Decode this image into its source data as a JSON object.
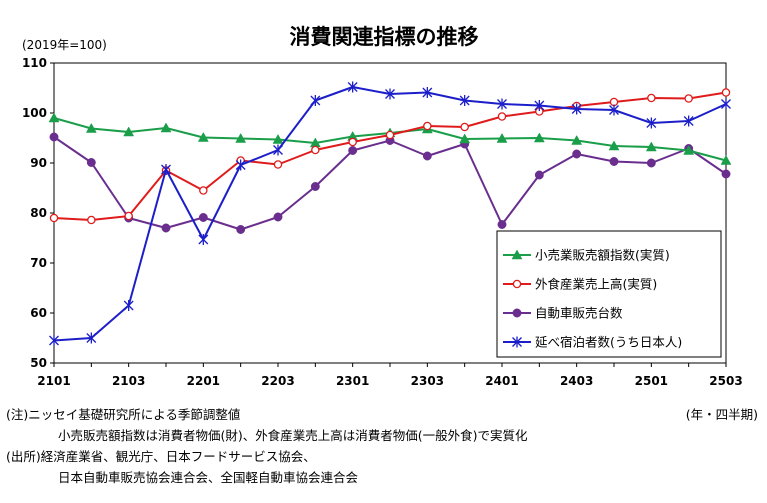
{
  "title": "消費関連指標の推移",
  "unit_label": "(2019年=100)",
  "period_unit": "(年・四半期)",
  "notes": [
    "(注)ニッセイ基礎研究所による季節調整値",
    "小売販売額指数は消費者物価(財)、外食産業売上高は消費者物価(一般外食)で実質化",
    "(出所)経済産業省、観光庁、日本フードサービス協会、",
    "日本自動車販売協会連合会、全国軽自動車協会連合会"
  ],
  "colors": {
    "retail": "#1a9e4a",
    "restaurant": "#e01b1b",
    "auto": "#6a2e8e",
    "lodging": "#1c1fc9"
  },
  "chart_data": {
    "type": "line",
    "x": [
      "2101",
      "2102",
      "2103",
      "2104",
      "2201",
      "2202",
      "2203",
      "2204",
      "2301",
      "2302",
      "2303",
      "2304",
      "2401",
      "2402",
      "2403",
      "2404",
      "2501",
      "2502",
      "2503"
    ],
    "x_tick_labels": [
      "2101",
      "",
      "2103",
      "",
      "2201",
      "",
      "2203",
      "",
      "2301",
      "",
      "2303",
      "",
      "2401",
      "",
      "2403",
      "",
      "2501",
      "",
      "2503"
    ],
    "ylim": [
      50,
      110
    ],
    "yticks": [
      50,
      60,
      70,
      80,
      90,
      100,
      110
    ],
    "grid": false,
    "legend_position": "bottom-right",
    "series": [
      {
        "name": "小売業販売額指数(実質)",
        "key": "retail",
        "marker": "triangle",
        "values": [
          99.0,
          96.9,
          96.2,
          97.0,
          95.1,
          94.9,
          94.7,
          94.0,
          95.3,
          96.0,
          96.8,
          94.8,
          94.9,
          95.0,
          94.5,
          93.4,
          93.2,
          92.5,
          90.5
        ]
      },
      {
        "name": "外食産業売上高(実質)",
        "key": "restaurant",
        "marker": "circle-open",
        "values": [
          79.0,
          78.6,
          79.4,
          88.5,
          84.5,
          90.5,
          89.7,
          92.6,
          94.2,
          95.6,
          97.4,
          97.2,
          99.3,
          100.3,
          101.4,
          102.2,
          103.0,
          102.9,
          104.1
        ]
      },
      {
        "name": "自動車販売台数",
        "key": "auto",
        "marker": "circle-filled",
        "values": [
          95.2,
          90.1,
          79.0,
          77.0,
          79.1,
          76.7,
          79.2,
          85.3,
          92.5,
          94.5,
          91.4,
          93.8,
          77.7,
          87.6,
          91.8,
          90.3,
          90.0,
          92.9,
          87.8
        ]
      },
      {
        "name": "延べ宿泊者数(うち日本人)",
        "key": "lodging",
        "marker": "star",
        "values": [
          54.5,
          55.0,
          61.5,
          88.7,
          74.7,
          89.6,
          92.6,
          102.5,
          105.2,
          103.8,
          104.1,
          102.5,
          101.8,
          101.5,
          100.8,
          100.6,
          98.0,
          98.4,
          101.8
        ]
      }
    ]
  }
}
